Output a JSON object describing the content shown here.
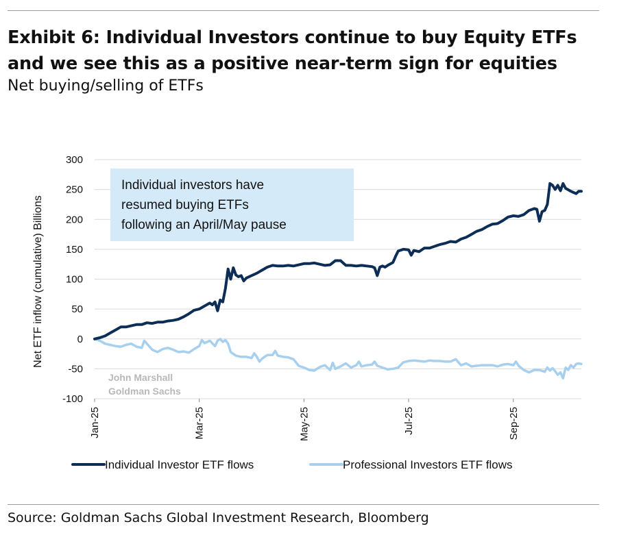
{
  "header": {
    "title": "Exhibit 6: Individual Investors continue to buy Equity ETFs and we see this as a positive near-term sign for equities",
    "subtitle": "Net buying/selling of ETFs"
  },
  "footer": {
    "source": "Source: Goldman Sachs Global Investment Research, Bloomberg"
  },
  "watermark": [
    "John Marshall",
    "Goldman Sachs"
  ],
  "annotation": {
    "lines": [
      "Individual investors have",
      "resumed buying ETFs",
      "following an April/May pause"
    ],
    "color": "#d5eaf9"
  },
  "chart_data": {
    "type": "line",
    "ylabel": "Net ETF inflow (cumulative) Billions",
    "ylim": [
      -100,
      300
    ],
    "yticks": [
      -100,
      -50,
      0,
      50,
      100,
      150,
      200,
      250,
      300
    ],
    "xlim": [
      0,
      9.3
    ],
    "xticks": [
      {
        "x": 0,
        "label": "Jan-25"
      },
      {
        "x": 2,
        "label": "Mar-25"
      },
      {
        "x": 4,
        "label": "May-25"
      },
      {
        "x": 6,
        "label": "Jul-25"
      },
      {
        "x": 8,
        "label": "Sep-25"
      }
    ],
    "grid": true,
    "legend_position": "bottom",
    "series": [
      {
        "name": "Individual Investor ETF flows",
        "color": "#0b2d56",
        "points": [
          [
            0,
            0
          ],
          [
            0.1,
            2
          ],
          [
            0.2,
            5
          ],
          [
            0.3,
            10
          ],
          [
            0.4,
            15
          ],
          [
            0.5,
            20
          ],
          [
            0.6,
            20
          ],
          [
            0.7,
            22
          ],
          [
            0.8,
            24
          ],
          [
            0.9,
            24
          ],
          [
            1.0,
            27
          ],
          [
            1.1,
            26
          ],
          [
            1.2,
            28
          ],
          [
            1.3,
            28
          ],
          [
            1.4,
            30
          ],
          [
            1.5,
            31
          ],
          [
            1.6,
            33
          ],
          [
            1.7,
            37
          ],
          [
            1.8,
            42
          ],
          [
            1.9,
            48
          ],
          [
            2.0,
            50
          ],
          [
            2.1,
            55
          ],
          [
            2.2,
            60
          ],
          [
            2.25,
            57
          ],
          [
            2.3,
            62
          ],
          [
            2.35,
            47
          ],
          [
            2.4,
            65
          ],
          [
            2.45,
            62
          ],
          [
            2.5,
            85
          ],
          [
            2.55,
            117
          ],
          [
            2.6,
            100
          ],
          [
            2.65,
            119
          ],
          [
            2.7,
            107
          ],
          [
            2.75,
            104
          ],
          [
            2.8,
            106
          ],
          [
            2.85,
            97
          ],
          [
            2.9,
            102
          ],
          [
            3.0,
            106
          ],
          [
            3.1,
            110
          ],
          [
            3.2,
            115
          ],
          [
            3.3,
            120
          ],
          [
            3.4,
            123
          ],
          [
            3.5,
            122
          ],
          [
            3.6,
            122
          ],
          [
            3.7,
            123
          ],
          [
            3.8,
            122
          ],
          [
            3.9,
            124
          ],
          [
            4.0,
            126
          ],
          [
            4.1,
            126
          ],
          [
            4.2,
            127
          ],
          [
            4.3,
            125
          ],
          [
            4.4,
            123
          ],
          [
            4.5,
            124
          ],
          [
            4.6,
            131
          ],
          [
            4.7,
            131
          ],
          [
            4.8,
            123
          ],
          [
            4.9,
            123
          ],
          [
            5.0,
            122
          ],
          [
            5.1,
            123
          ],
          [
            5.2,
            122
          ],
          [
            5.3,
            121
          ],
          [
            5.35,
            119
          ],
          [
            5.4,
            106
          ],
          [
            5.45,
            120
          ],
          [
            5.5,
            122
          ],
          [
            5.55,
            120
          ],
          [
            5.6,
            123
          ],
          [
            5.7,
            128
          ],
          [
            5.75,
            138
          ],
          [
            5.8,
            147
          ],
          [
            5.9,
            150
          ],
          [
            6.0,
            149
          ],
          [
            6.05,
            140
          ],
          [
            6.1,
            148
          ],
          [
            6.2,
            146
          ],
          [
            6.3,
            152
          ],
          [
            6.4,
            152
          ],
          [
            6.5,
            155
          ],
          [
            6.6,
            158
          ],
          [
            6.7,
            160
          ],
          [
            6.8,
            163
          ],
          [
            6.9,
            162
          ],
          [
            7.0,
            167
          ],
          [
            7.1,
            170
          ],
          [
            7.2,
            175
          ],
          [
            7.3,
            180
          ],
          [
            7.4,
            183
          ],
          [
            7.5,
            188
          ],
          [
            7.6,
            192
          ],
          [
            7.7,
            193
          ],
          [
            7.8,
            198
          ],
          [
            7.9,
            204
          ],
          [
            8.0,
            206
          ],
          [
            8.1,
            205
          ],
          [
            8.2,
            208
          ],
          [
            8.3,
            215
          ],
          [
            8.4,
            218
          ],
          [
            8.45,
            217
          ],
          [
            8.5,
            197
          ],
          [
            8.55,
            213
          ],
          [
            8.6,
            215
          ],
          [
            8.65,
            225
          ],
          [
            8.7,
            260
          ],
          [
            8.75,
            257
          ],
          [
            8.8,
            250
          ],
          [
            8.85,
            257
          ],
          [
            8.9,
            248
          ],
          [
            8.95,
            260
          ],
          [
            9.0,
            252
          ],
          [
            9.1,
            247
          ],
          [
            9.2,
            243
          ],
          [
            9.25,
            247
          ],
          [
            9.3,
            247
          ]
        ]
      },
      {
        "name": "Professional Investors ETF flows",
        "color": "#a7d0ef",
        "points": [
          [
            0,
            0
          ],
          [
            0.1,
            -3
          ],
          [
            0.2,
            -8
          ],
          [
            0.3,
            -10
          ],
          [
            0.4,
            -12
          ],
          [
            0.5,
            -13
          ],
          [
            0.6,
            -10
          ],
          [
            0.7,
            -8
          ],
          [
            0.8,
            -13
          ],
          [
            0.9,
            -15
          ],
          [
            0.95,
            -3
          ],
          [
            1.0,
            -8
          ],
          [
            1.1,
            -18
          ],
          [
            1.2,
            -22
          ],
          [
            1.3,
            -17
          ],
          [
            1.4,
            -15
          ],
          [
            1.5,
            -18
          ],
          [
            1.6,
            -22
          ],
          [
            1.7,
            -21
          ],
          [
            1.8,
            -23
          ],
          [
            1.9,
            -17
          ],
          [
            2.0,
            -12
          ],
          [
            2.05,
            -2
          ],
          [
            2.1,
            -7
          ],
          [
            2.2,
            -3
          ],
          [
            2.3,
            -12
          ],
          [
            2.35,
            -3
          ],
          [
            2.4,
            0
          ],
          [
            2.45,
            -5
          ],
          [
            2.5,
            -2
          ],
          [
            2.55,
            -8
          ],
          [
            2.6,
            -22
          ],
          [
            2.7,
            -28
          ],
          [
            2.8,
            -30
          ],
          [
            2.9,
            -30
          ],
          [
            3.0,
            -32
          ],
          [
            3.05,
            -24
          ],
          [
            3.1,
            -30
          ],
          [
            3.15,
            -38
          ],
          [
            3.2,
            -33
          ],
          [
            3.3,
            -27
          ],
          [
            3.4,
            -27
          ],
          [
            3.45,
            -20
          ],
          [
            3.5,
            -28
          ],
          [
            3.6,
            -30
          ],
          [
            3.7,
            -31
          ],
          [
            3.8,
            -34
          ],
          [
            3.9,
            -45
          ],
          [
            4.0,
            -48
          ],
          [
            4.1,
            -52
          ],
          [
            4.2,
            -53
          ],
          [
            4.3,
            -47
          ],
          [
            4.4,
            -44
          ],
          [
            4.5,
            -52
          ],
          [
            4.55,
            -40
          ],
          [
            4.6,
            -50
          ],
          [
            4.7,
            -46
          ],
          [
            4.8,
            -41
          ],
          [
            4.9,
            -48
          ],
          [
            5.0,
            -44
          ],
          [
            5.05,
            -38
          ],
          [
            5.1,
            -46
          ],
          [
            5.2,
            -44
          ],
          [
            5.3,
            -43
          ],
          [
            5.35,
            -38
          ],
          [
            5.4,
            -45
          ],
          [
            5.5,
            -48
          ],
          [
            5.6,
            -51
          ],
          [
            5.7,
            -50
          ],
          [
            5.8,
            -48
          ],
          [
            5.9,
            -39
          ],
          [
            6.0,
            -37
          ],
          [
            6.1,
            -36
          ],
          [
            6.2,
            -37
          ],
          [
            6.3,
            -38
          ],
          [
            6.4,
            -36
          ],
          [
            6.5,
            -37
          ],
          [
            6.6,
            -37
          ],
          [
            6.7,
            -38
          ],
          [
            6.8,
            -38
          ],
          [
            6.9,
            -34
          ],
          [
            7.0,
            -44
          ],
          [
            7.1,
            -41
          ],
          [
            7.2,
            -46
          ],
          [
            7.3,
            -45
          ],
          [
            7.4,
            -44
          ],
          [
            7.5,
            -44
          ],
          [
            7.6,
            -44
          ],
          [
            7.7,
            -46
          ],
          [
            7.8,
            -43
          ],
          [
            7.9,
            -42
          ],
          [
            8.0,
            -44
          ],
          [
            8.05,
            -38
          ],
          [
            8.1,
            -45
          ],
          [
            8.2,
            -52
          ],
          [
            8.3,
            -56
          ],
          [
            8.4,
            -52
          ],
          [
            8.5,
            -52
          ],
          [
            8.6,
            -55
          ],
          [
            8.65,
            -48
          ],
          [
            8.7,
            -53
          ],
          [
            8.75,
            -49
          ],
          [
            8.8,
            -54
          ],
          [
            8.85,
            -60
          ],
          [
            8.9,
            -56
          ],
          [
            8.95,
            -66
          ],
          [
            9.0,
            -48
          ],
          [
            9.05,
            -52
          ],
          [
            9.1,
            -44
          ],
          [
            9.15,
            -48
          ],
          [
            9.2,
            -42
          ],
          [
            9.25,
            -41
          ],
          [
            9.3,
            -42
          ]
        ]
      }
    ]
  }
}
